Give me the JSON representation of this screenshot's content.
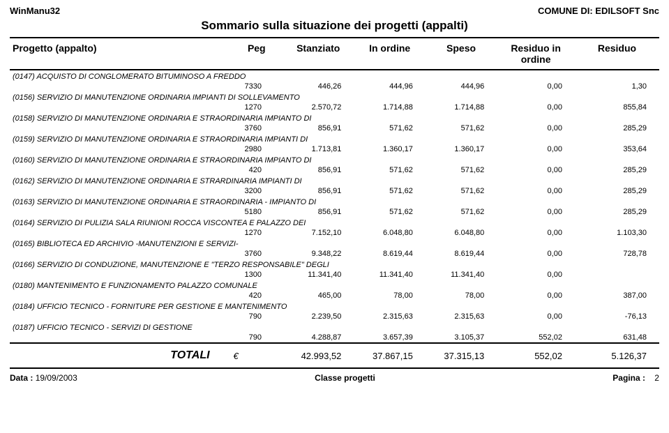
{
  "header": {
    "app_name": "WinManu32",
    "org_label": "COMUNE DI: EDILSOFT Snc",
    "title": "Sommario sulla situazione dei progetti (appalti)"
  },
  "columns": {
    "c0": "Progetto (appalto)",
    "c1": "Peg",
    "c2": "Stanziato",
    "c3": "In ordine",
    "c4": "Speso",
    "c5": "Residuo in ordine",
    "c6": "Residuo"
  },
  "rows": [
    {
      "name": "(0147) ACQUISTO DI CONGLOMERATO BITUMINOSO A FREDDO",
      "peg": "7330",
      "stanziato": "446,26",
      "in_ordine": "444,96",
      "speso": "444,96",
      "residuo_ordine": "0,00",
      "residuo": "1,30"
    },
    {
      "name": "(0156) SERVIZIO DI MANUTENZIONE ORDINARIA IMPIANTI DI SOLLEVAMENTO",
      "peg": "1270",
      "stanziato": "2.570,72",
      "in_ordine": "1.714,88",
      "speso": "1.714,88",
      "residuo_ordine": "0,00",
      "residuo": "855,84"
    },
    {
      "name": "(0158) SERVIZIO DI MANUTENZIONE ORDINARIA E STRAORDINARIA IMPIANTO DI",
      "peg": "3760",
      "stanziato": "856,91",
      "in_ordine": "571,62",
      "speso": "571,62",
      "residuo_ordine": "0,00",
      "residuo": "285,29"
    },
    {
      "name": "(0159) SERVIZIO DI MANUTENZIONE ORDINARIA E STRAORDINARIA IMPIANTI DI",
      "peg": "2980",
      "stanziato": "1.713,81",
      "in_ordine": "1.360,17",
      "speso": "1.360,17",
      "residuo_ordine": "0,00",
      "residuo": "353,64"
    },
    {
      "name": "(0160) SERVIZIO DI MANUTENZIONE ORDINARIA E STRAORDINARIA IMPIANTO DI",
      "peg": "420",
      "stanziato": "856,91",
      "in_ordine": "571,62",
      "speso": "571,62",
      "residuo_ordine": "0,00",
      "residuo": "285,29"
    },
    {
      "name": "(0162) SERVIZIO DI MANUTENZIONE ORDINARIA E STRARDINARIA IMPIANTI DI",
      "peg": "3200",
      "stanziato": "856,91",
      "in_ordine": "571,62",
      "speso": "571,62",
      "residuo_ordine": "0,00",
      "residuo": "285,29"
    },
    {
      "name": "(0163) SERVIZIO DI MANUTENZIONE ORDINARIA E STRAORDINARIA - IMPIANTO DI",
      "peg": "5180",
      "stanziato": "856,91",
      "in_ordine": "571,62",
      "speso": "571,62",
      "residuo_ordine": "0,00",
      "residuo": "285,29"
    },
    {
      "name": "(0164) SERVIZIO DI PULIZIA SALA RIUNIONI ROCCA VISCONTEA E PALAZZO DEI",
      "peg": "1270",
      "stanziato": "7.152,10",
      "in_ordine": "6.048,80",
      "speso": "6.048,80",
      "residuo_ordine": "0,00",
      "residuo": "1.103,30"
    },
    {
      "name": "(0165) BIBLIOTECA ED ARCHIVIO -MANUTENZIONI E SERVIZI-",
      "peg": "3760",
      "stanziato": "9.348,22",
      "in_ordine": "8.619,44",
      "speso": "8.619,44",
      "residuo_ordine": "0,00",
      "residuo": "728,78"
    },
    {
      "name": "(0166) SERVIZIO DI CONDUZIONE, MANUTENZIONE E \"TERZO RESPONSABILE\" DEGLI",
      "peg": "1300",
      "stanziato": "11.341,40",
      "in_ordine": "11.341,40",
      "speso": "11.341,40",
      "residuo_ordine": "0,00",
      "residuo": ""
    },
    {
      "name": "(0180) MANTENIMENTO E FUNZIONAMENTO PALAZZO COMUNALE",
      "peg": "420",
      "stanziato": "465,00",
      "in_ordine": "78,00",
      "speso": "78,00",
      "residuo_ordine": "0,00",
      "residuo": "387,00"
    },
    {
      "name": "(0184) UFFICIO TECNICO - FORNITURE PER GESTIONE E MANTENIMENTO",
      "peg": "790",
      "stanziato": "2.239,50",
      "in_ordine": "2.315,63",
      "speso": "2.315,63",
      "residuo_ordine": "0,00",
      "residuo": "-76,13"
    },
    {
      "name": "(0187) UFFICIO TECNICO - SERVIZI DI GESTIONE",
      "peg": "790",
      "stanziato": "4.288,87",
      "in_ordine": "3.657,39",
      "speso": "3.105,37",
      "residuo_ordine": "552,02",
      "residuo": "631,48"
    }
  ],
  "totals": {
    "label": "TOTALI",
    "currency": "€",
    "stanziato": "42.993,52",
    "in_ordine": "37.867,15",
    "speso": "37.315,13",
    "residuo_ordine": "552,02",
    "residuo": "5.126,37"
  },
  "footer": {
    "data_label": "Data :",
    "data_value": "19/09/2003",
    "center": "Classe progetti",
    "page_label": "Pagina :",
    "page_value": "2"
  }
}
